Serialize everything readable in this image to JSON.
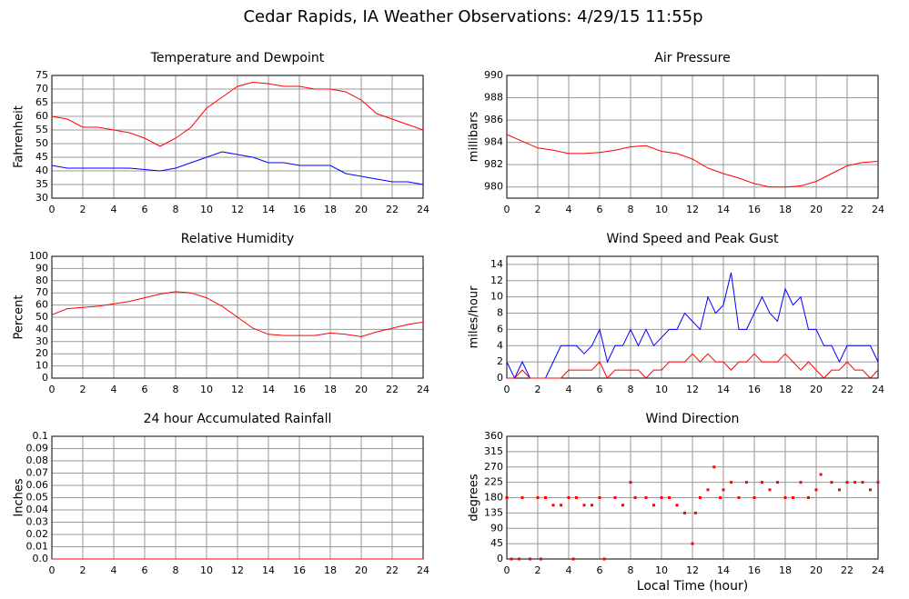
{
  "title": "Cedar Rapids, IA Weather Observations: 4/29/15 11:55p",
  "chart_data": [
    {
      "type": "line",
      "title": "Temperature and Dewpoint",
      "ylabel": "Fahrenheit",
      "grid": true,
      "xlim": [
        0,
        24
      ],
      "xticks": [
        0,
        2,
        4,
        6,
        8,
        10,
        12,
        14,
        16,
        18,
        20,
        22,
        24
      ],
      "ylim": [
        30,
        75
      ],
      "yticks": [
        30,
        35,
        40,
        45,
        50,
        55,
        60,
        65,
        70,
        75
      ],
      "x": [
        0,
        1,
        2,
        3,
        4,
        5,
        6,
        7,
        8,
        9,
        10,
        11,
        12,
        13,
        14,
        15,
        16,
        17,
        18,
        19,
        20,
        21,
        22,
        23,
        24
      ],
      "series": [
        {
          "name": "Temperature",
          "color": "#ff0000",
          "values": [
            60,
            59,
            56,
            56,
            55,
            54,
            52,
            49,
            52,
            56,
            63,
            67,
            71,
            72.5,
            72,
            71,
            71,
            70,
            70,
            69,
            66,
            61,
            59,
            57,
            55
          ]
        },
        {
          "name": "Dewpoint",
          "color": "#0000ff",
          "values": [
            42,
            41,
            41,
            41,
            41,
            41,
            40.5,
            40,
            41,
            43,
            45,
            47,
            46,
            45,
            43,
            43,
            42,
            42,
            42,
            39,
            38,
            37,
            36,
            36,
            35
          ]
        }
      ]
    },
    {
      "type": "line",
      "title": "Air Pressure",
      "ylabel": "millibars",
      "grid": true,
      "xlim": [
        0,
        24
      ],
      "xticks": [
        0,
        2,
        4,
        6,
        8,
        10,
        12,
        14,
        16,
        18,
        20,
        22,
        24
      ],
      "ylim": [
        979,
        990
      ],
      "yticks": [
        980,
        982,
        984,
        986,
        988,
        990
      ],
      "x": [
        0,
        1,
        2,
        3,
        4,
        5,
        6,
        7,
        8,
        9,
        10,
        11,
        12,
        13,
        14,
        15,
        16,
        17,
        18,
        19,
        20,
        21,
        22,
        23,
        24
      ],
      "series": [
        {
          "name": "Pressure",
          "color": "#ff0000",
          "values": [
            984.7,
            984.1,
            983.5,
            983.3,
            983.0,
            983.0,
            983.1,
            983.3,
            983.6,
            983.7,
            983.2,
            983.0,
            982.5,
            981.7,
            981.2,
            980.8,
            980.3,
            980.0,
            980.0,
            980.1,
            980.5,
            981.2,
            981.9,
            982.2,
            982.3
          ]
        }
      ]
    },
    {
      "type": "line",
      "title": "Relative Humidity",
      "ylabel": "Percent",
      "grid": true,
      "xlim": [
        0,
        24
      ],
      "xticks": [
        0,
        2,
        4,
        6,
        8,
        10,
        12,
        14,
        16,
        18,
        20,
        22,
        24
      ],
      "ylim": [
        0,
        100
      ],
      "yticks": [
        0,
        10,
        20,
        30,
        40,
        50,
        60,
        70,
        80,
        90,
        100
      ],
      "x": [
        0,
        1,
        2,
        3,
        4,
        5,
        6,
        7,
        8,
        9,
        10,
        11,
        12,
        13,
        14,
        15,
        16,
        17,
        18,
        19,
        20,
        21,
        22,
        23,
        24
      ],
      "series": [
        {
          "name": "Relative Humidity",
          "color": "#ff0000",
          "values": [
            52,
            57,
            58,
            59,
            61,
            63,
            66,
            69,
            71,
            70,
            66,
            59,
            50,
            41,
            36,
            35,
            35,
            35,
            37,
            36,
            34,
            38,
            41,
            44,
            46
          ]
        }
      ]
    },
    {
      "type": "line",
      "title": "Wind Speed and Peak Gust",
      "ylabel": "miles/hour",
      "grid": true,
      "xlim": [
        0,
        24
      ],
      "xticks": [
        0,
        2,
        4,
        6,
        8,
        10,
        12,
        14,
        16,
        18,
        20,
        22,
        24
      ],
      "ylim": [
        0,
        15
      ],
      "yticks": [
        0,
        2,
        4,
        6,
        8,
        10,
        12,
        14
      ],
      "x": [
        0,
        0.5,
        1,
        1.5,
        2,
        2.5,
        3,
        3.5,
        4,
        4.5,
        5,
        5.5,
        6,
        6.5,
        7,
        7.5,
        8,
        8.5,
        9,
        9.5,
        10,
        10.5,
        11,
        11.5,
        12,
        12.5,
        13,
        13.5,
        14,
        14.5,
        15,
        15.5,
        16,
        16.5,
        17,
        17.5,
        18,
        18.5,
        19,
        19.5,
        20,
        20.5,
        21,
        21.5,
        22,
        22.5,
        23,
        23.5,
        24
      ],
      "series": [
        {
          "name": "Peak Gust",
          "color": "#0000ff",
          "values": [
            2,
            0,
            2,
            0,
            0,
            0,
            2,
            4,
            4,
            4,
            3,
            4,
            6,
            2,
            4,
            4,
            6,
            4,
            6,
            4,
            5,
            6,
            6,
            8,
            7,
            6,
            10,
            8,
            9,
            13,
            6,
            6,
            8,
            10,
            8,
            7,
            11,
            9,
            10,
            6,
            6,
            4,
            4,
            2,
            4,
            4,
            4,
            4,
            2
          ]
        },
        {
          "name": "Wind Speed",
          "color": "#ff0000",
          "values": [
            0,
            0,
            1,
            0,
            0,
            0,
            0,
            0,
            1,
            1,
            1,
            1,
            2,
            0,
            1,
            1,
            1,
            1,
            0,
            1,
            1,
            2,
            2,
            2,
            3,
            2,
            3,
            2,
            2,
            1,
            2,
            2,
            3,
            2,
            2,
            2,
            3,
            2,
            1,
            2,
            1,
            0,
            1,
            1,
            2,
            1,
            1,
            0,
            1
          ]
        }
      ]
    },
    {
      "type": "line",
      "title": "24 hour Accumulated Rainfall",
      "ylabel": "Inches",
      "grid": true,
      "xlim": [
        0,
        24
      ],
      "xticks": [
        0,
        2,
        4,
        6,
        8,
        10,
        12,
        14,
        16,
        18,
        20,
        22,
        24
      ],
      "ylim": [
        0,
        0.1
      ],
      "yticks": [
        {
          "value": 0,
          "label": "0.0"
        },
        0.01,
        0.02,
        0.03,
        0.04,
        0.05,
        0.06,
        0.07,
        0.08,
        0.09,
        0.1
      ],
      "x": [
        0,
        24
      ],
      "series": [
        {
          "name": "Rainfall",
          "color": "#ff0000",
          "values": [
            0,
            0
          ]
        }
      ]
    },
    {
      "type": "scatter",
      "title": "Wind Direction",
      "ylabel": "degrees",
      "xlabel": "Local Time (hour)",
      "grid": true,
      "xlim": [
        0,
        24
      ],
      "xticks": [
        0,
        2,
        4,
        6,
        8,
        10,
        12,
        14,
        16,
        18,
        20,
        22,
        24
      ],
      "ylim": [
        0,
        360
      ],
      "yticks": [
        0,
        45,
        90,
        135,
        180,
        225,
        270,
        315,
        360
      ],
      "x": [
        0,
        0.3,
        0.8,
        1,
        1.5,
        2,
        2.2,
        2.5,
        3,
        3.5,
        4,
        4.3,
        4.5,
        5,
        5.5,
        6,
        6.3,
        7,
        7.5,
        8,
        8.3,
        9,
        9.5,
        10,
        10.5,
        11,
        11.5,
        12,
        12.2,
        12.5,
        13,
        13.4,
        13.8,
        14,
        14.5,
        15,
        15.5,
        16,
        16.5,
        17,
        17.5,
        18,
        18.5,
        19,
        19.5,
        20,
        20.3,
        21,
        21.5,
        22,
        22.5,
        23,
        23.5,
        24
      ],
      "series": [
        {
          "name": "Wind Direction",
          "color": "#ff0000",
          "values": [
            180,
            0,
            0,
            180,
            0,
            180,
            0,
            180,
            158,
            158,
            180,
            0,
            180,
            158,
            158,
            180,
            0,
            180,
            158,
            225,
            180,
            180,
            158,
            180,
            180,
            158,
            135,
            45,
            135,
            180,
            203,
            270,
            180,
            203,
            225,
            180,
            225,
            180,
            225,
            203,
            225,
            180,
            180,
            225,
            180,
            203,
            248,
            225,
            203,
            225,
            225,
            225,
            203,
            225
          ]
        }
      ]
    }
  ]
}
